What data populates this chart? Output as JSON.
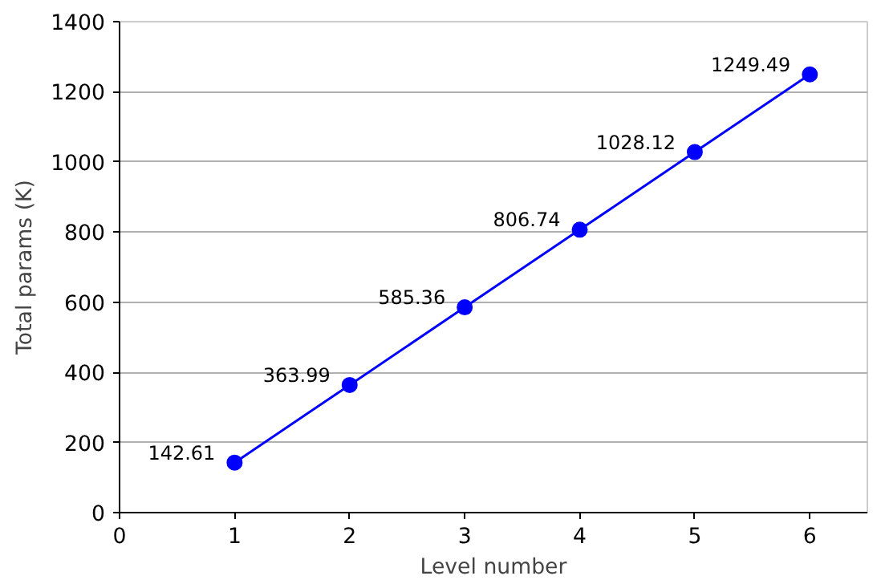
{
  "chart_data": {
    "type": "line",
    "xlabel": "Level number",
    "ylabel": "Total params (K)",
    "x": [
      1,
      2,
      3,
      4,
      5,
      6
    ],
    "series": [
      {
        "color": "#0000ff",
        "values": [
          142.61,
          363.99,
          585.36,
          806.74,
          1028.12,
          1249.49
        ]
      }
    ],
    "xlim": [
      0,
      6.5
    ],
    "xticks": [
      0,
      1,
      2,
      3,
      4,
      5,
      6
    ],
    "ylim": [
      0,
      1400
    ],
    "yticks": [
      0,
      200,
      400,
      600,
      800,
      1000,
      1200,
      1400
    ],
    "grid": "y",
    "marker": "circle",
    "line_style": "solid",
    "data_labels": true
  }
}
